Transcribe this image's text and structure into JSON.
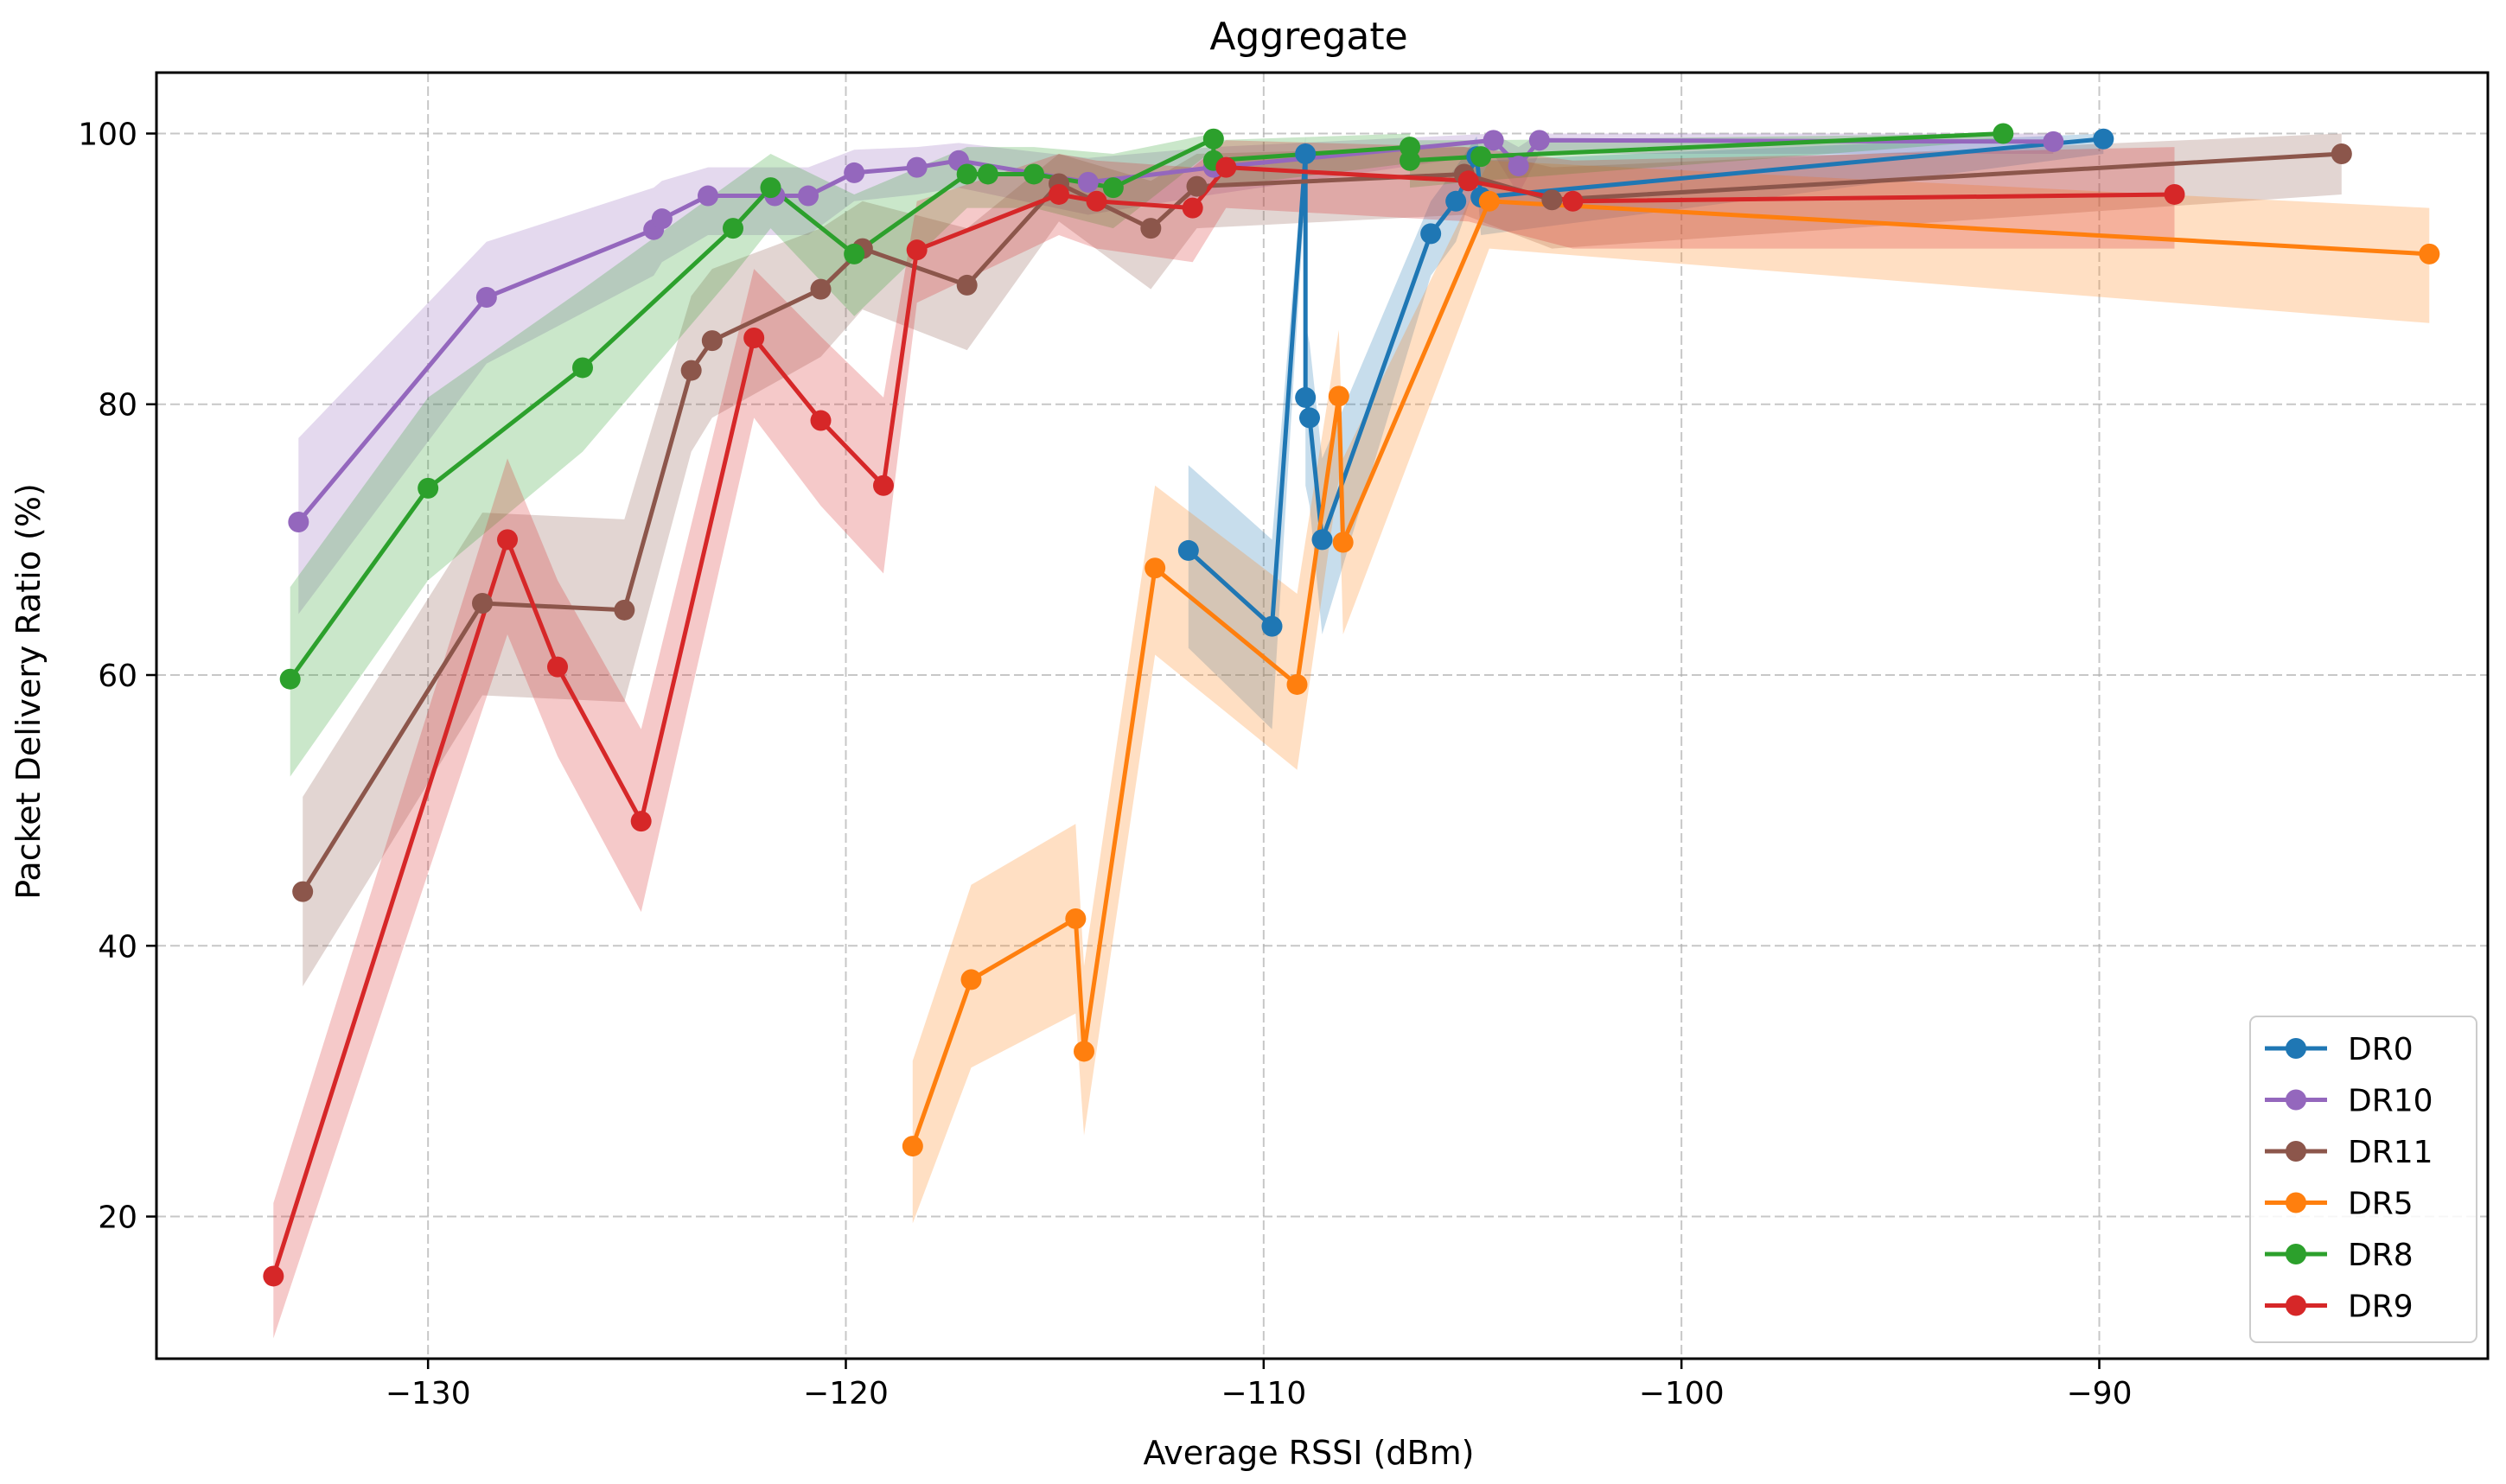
{
  "chart_data": {
    "type": "line",
    "title": "Aggregate",
    "xlabel": "Average RSSI (dBm)",
    "ylabel": "Packet Delivery Ratio (%)",
    "xlim": [
      -136.5,
      -80.7
    ],
    "ylim": [
      9.5,
      104.5
    ],
    "xticks": [
      -130,
      -120,
      -110,
      -100,
      -90
    ],
    "xtick_labels": [
      "−130",
      "−120",
      "−110",
      "−100",
      "−90"
    ],
    "yticks": [
      20,
      40,
      60,
      80,
      100
    ],
    "ytick_labels": [
      "20",
      "40",
      "60",
      "80",
      "100"
    ],
    "grid": true,
    "legend_position": "bottom-right",
    "series": [
      {
        "name": "DR0",
        "color": "#1f77b4",
        "points": [
          [
            -111.8,
            69.2
          ],
          [
            -109.8,
            63.6
          ],
          [
            -109.0,
            98.5
          ],
          [
            -109.0,
            80.5
          ],
          [
            -108.9,
            79.0
          ],
          [
            -108.6,
            70.0
          ],
          [
            -106.0,
            92.6
          ],
          [
            -105.4,
            95.0
          ],
          [
            -104.9,
            98.3
          ],
          [
            -104.8,
            95.3
          ],
          [
            -89.9,
            99.6
          ]
        ],
        "band": [
          [
            -111.8,
            62.0,
            75.5
          ],
          [
            -109.8,
            56.0,
            70.0
          ],
          [
            -109.0,
            96.0,
            99.8
          ],
          [
            -109.0,
            74.0,
            86.0
          ],
          [
            -108.9,
            72.5,
            84.5
          ],
          [
            -108.6,
            63.0,
            76.0
          ],
          [
            -106.0,
            89.5,
            95.0
          ],
          [
            -105.4,
            92.0,
            97.5
          ],
          [
            -104.9,
            96.5,
            99.8
          ],
          [
            -104.8,
            92.5,
            98.0
          ],
          [
            -89.9,
            98.5,
            100.0
          ]
        ]
      },
      {
        "name": "DR10",
        "color": "#9467bd",
        "points": [
          [
            -133.1,
            71.3
          ],
          [
            -128.6,
            87.9
          ],
          [
            -124.6,
            92.9
          ],
          [
            -124.4,
            93.7
          ],
          [
            -123.3,
            95.4
          ],
          [
            -121.7,
            95.4
          ],
          [
            -120.9,
            95.4
          ],
          [
            -119.8,
            97.1
          ],
          [
            -118.3,
            97.5
          ],
          [
            -117.3,
            98.0
          ],
          [
            -114.2,
            96.4
          ],
          [
            -111.2,
            97.5
          ],
          [
            -104.5,
            99.5
          ],
          [
            -103.9,
            97.6
          ],
          [
            -103.4,
            99.5
          ],
          [
            -91.1,
            99.4
          ]
        ],
        "band": [
          [
            -133.1,
            64.5,
            77.5
          ],
          [
            -128.6,
            83.0,
            92.0
          ],
          [
            -124.6,
            89.5,
            96.0
          ],
          [
            -124.4,
            90.5,
            96.5
          ],
          [
            -123.3,
            92.5,
            97.5
          ],
          [
            -121.7,
            92.5,
            97.5
          ],
          [
            -120.9,
            92.5,
            97.5
          ],
          [
            -119.8,
            95.0,
            98.8
          ],
          [
            -118.3,
            95.5,
            99.0
          ],
          [
            -117.3,
            96.0,
            99.3
          ],
          [
            -114.2,
            94.0,
            98.2
          ],
          [
            -111.2,
            95.5,
            99.0
          ],
          [
            -104.5,
            98.5,
            100.0
          ],
          [
            -103.9,
            95.5,
            99.0
          ],
          [
            -103.4,
            98.5,
            100.0
          ],
          [
            -91.1,
            98.5,
            100.0
          ]
        ]
      },
      {
        "name": "DR11",
        "color": "#8c564b",
        "points": [
          [
            -133.0,
            44.0
          ],
          [
            -128.7,
            65.3
          ],
          [
            -125.3,
            64.8
          ],
          [
            -123.7,
            82.5
          ],
          [
            -123.2,
            84.7
          ],
          [
            -120.6,
            88.5
          ],
          [
            -119.6,
            91.5
          ],
          [
            -117.1,
            88.8
          ],
          [
            -114.9,
            96.3
          ],
          [
            -112.7,
            93.0
          ],
          [
            -111.6,
            96.1
          ],
          [
            -105.2,
            97.0
          ],
          [
            -103.1,
            95.1
          ],
          [
            -84.2,
            98.5
          ]
        ],
        "band": [
          [
            -133.0,
            37.0,
            51.0
          ],
          [
            -128.7,
            58.5,
            72.0
          ],
          [
            -125.3,
            58.0,
            71.5
          ],
          [
            -123.7,
            76.5,
            88.0
          ],
          [
            -123.2,
            79.0,
            90.0
          ],
          [
            -120.6,
            83.5,
            93.0
          ],
          [
            -119.6,
            87.0,
            95.0
          ],
          [
            -117.1,
            84.0,
            93.0
          ],
          [
            -114.9,
            93.5,
            98.5
          ],
          [
            -112.7,
            88.5,
            96.5
          ],
          [
            -111.6,
            93.0,
            98.5
          ],
          [
            -105.2,
            94.0,
            99.0
          ],
          [
            -103.1,
            91.5,
            97.5
          ],
          [
            -84.2,
            95.5,
            100.0
          ]
        ]
      },
      {
        "name": "DR5",
        "color": "#ff7f0e",
        "points": [
          [
            -118.4,
            25.2
          ],
          [
            -117.0,
            37.5
          ],
          [
            -114.5,
            42.0
          ],
          [
            -114.3,
            32.2
          ],
          [
            -112.6,
            67.9
          ],
          [
            -109.2,
            59.3
          ],
          [
            -108.2,
            80.6
          ],
          [
            -108.1,
            69.8
          ],
          [
            -104.6,
            95.0
          ],
          [
            -82.1,
            91.1
          ]
        ],
        "band": [
          [
            -118.4,
            19.5,
            31.5
          ],
          [
            -117.0,
            31.0,
            44.5
          ],
          [
            -114.5,
            35.0,
            49.0
          ],
          [
            -114.3,
            26.0,
            38.5
          ],
          [
            -112.6,
            61.5,
            74.0
          ],
          [
            -109.2,
            53.0,
            66.0
          ],
          [
            -108.2,
            74.5,
            85.5
          ],
          [
            -108.1,
            63.0,
            76.0
          ],
          [
            -104.6,
            91.5,
            98.0
          ],
          [
            -82.1,
            86.0,
            94.5
          ]
        ]
      },
      {
        "name": "DR8",
        "color": "#2ca02c",
        "points": [
          [
            -133.3,
            59.7
          ],
          [
            -130.0,
            73.8
          ],
          [
            -126.3,
            82.7
          ],
          [
            -122.7,
            93.0
          ],
          [
            -121.8,
            96.0
          ],
          [
            -119.8,
            91.1
          ],
          [
            -117.1,
            97.0
          ],
          [
            -116.6,
            97.0
          ],
          [
            -115.5,
            97.0
          ],
          [
            -113.6,
            96.0
          ],
          [
            -111.2,
            99.6
          ],
          [
            -111.2,
            98.0
          ],
          [
            -106.5,
            99.0
          ],
          [
            -106.5,
            98.0
          ],
          [
            -104.8,
            98.3
          ],
          [
            -92.3,
            100.0
          ]
        ],
        "band": [
          [
            -133.3,
            52.5,
            66.5
          ],
          [
            -130.0,
            67.0,
            80.5
          ],
          [
            -126.3,
            76.5,
            88.5
          ],
          [
            -122.7,
            89.5,
            96.5
          ],
          [
            -121.8,
            93.0,
            98.5
          ],
          [
            -119.8,
            86.5,
            95.5
          ],
          [
            -117.1,
            94.5,
            99.0
          ],
          [
            -116.6,
            94.5,
            99.0
          ],
          [
            -115.5,
            94.5,
            99.0
          ],
          [
            -113.6,
            93.0,
            98.5
          ],
          [
            -111.2,
            98.8,
            100.0
          ],
          [
            -111.2,
            96.0,
            99.5
          ],
          [
            -106.5,
            97.8,
            100.0
          ],
          [
            -106.5,
            96.0,
            99.5
          ],
          [
            -104.8,
            96.5,
            99.5
          ],
          [
            -92.3,
            99.5,
            100.0
          ]
        ]
      },
      {
        "name": "DR9",
        "color": "#d62728",
        "points": [
          [
            -133.7,
            15.6
          ],
          [
            -128.1,
            70.0
          ],
          [
            -126.9,
            60.6
          ],
          [
            -124.9,
            49.2
          ],
          [
            -122.2,
            84.9
          ],
          [
            -120.6,
            78.8
          ],
          [
            -119.1,
            74.0
          ],
          [
            -118.3,
            91.4
          ],
          [
            -114.9,
            95.5
          ],
          [
            -114.0,
            95.0
          ],
          [
            -111.7,
            94.5
          ],
          [
            -110.9,
            97.5
          ],
          [
            -105.1,
            96.5
          ],
          [
            -102.6,
            95.0
          ],
          [
            -88.2,
            95.5
          ]
        ],
        "band": [
          [
            -133.7,
            11.0,
            21.0
          ],
          [
            -128.1,
            63.0,
            76.0
          ],
          [
            -126.9,
            54.0,
            67.0
          ],
          [
            -124.9,
            42.5,
            56.0
          ],
          [
            -122.2,
            79.0,
            90.0
          ],
          [
            -120.6,
            72.5,
            85.0
          ],
          [
            -119.1,
            67.5,
            80.5
          ],
          [
            -118.3,
            87.5,
            95.0
          ],
          [
            -114.9,
            92.5,
            98.5
          ],
          [
            -114.0,
            91.5,
            98.0
          ],
          [
            -111.7,
            90.5,
            97.5
          ],
          [
            -110.9,
            94.5,
            99.5
          ],
          [
            -105.1,
            93.5,
            99.0
          ],
          [
            -102.6,
            91.5,
            98.0
          ],
          [
            -88.2,
            91.5,
            99.0
          ]
        ]
      }
    ]
  }
}
